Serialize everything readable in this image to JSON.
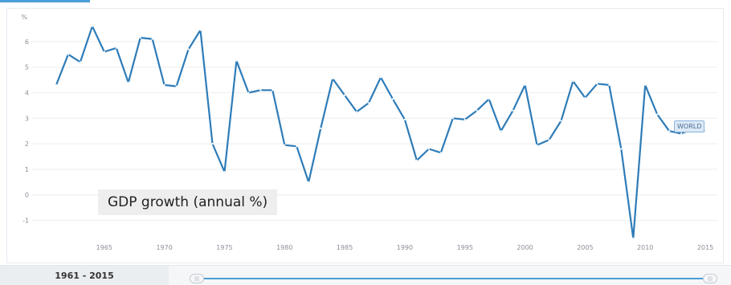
{
  "chart_data": {
    "type": "line",
    "title": "GDP growth (annual %)",
    "ylabel": "%",
    "xlabel": "",
    "ylim": [
      -1.8,
      7
    ],
    "xlim": [
      1960,
      2016
    ],
    "y_ticks": [
      -1,
      0,
      1,
      2,
      3,
      4,
      5,
      6
    ],
    "y_tick_labels": [
      "-1",
      "0",
      "1",
      "2",
      "3",
      "4",
      "5",
      "6"
    ],
    "x_ticks": [
      1965,
      1970,
      1975,
      1980,
      1985,
      1990,
      1995,
      2000,
      2005,
      2010,
      2015
    ],
    "x_tick_labels": [
      "1965",
      "1970",
      "1975",
      "1980",
      "1985",
      "1990",
      "1995",
      "2000",
      "2005",
      "2010",
      "2015"
    ],
    "grid": "horizontal",
    "series": [
      {
        "name": "WORLD",
        "color": "#2e7cb8",
        "x": [
          1961,
          1962,
          1963,
          1964,
          1965,
          1966,
          1967,
          1968,
          1969,
          1970,
          1971,
          1972,
          1973,
          1974,
          1975,
          1976,
          1977,
          1978,
          1979,
          1980,
          1981,
          1982,
          1983,
          1984,
          1985,
          1986,
          1987,
          1988,
          1989,
          1990,
          1991,
          1992,
          1993,
          1994,
          1995,
          1996,
          1997,
          1998,
          1999,
          2000,
          2001,
          2002,
          2003,
          2004,
          2005,
          2006,
          2007,
          2008,
          2009,
          2010,
          2011,
          2012,
          2013,
          2014,
          2015
        ],
        "y": [
          4.3,
          5.5,
          5.2,
          6.6,
          5.6,
          5.75,
          4.4,
          6.15,
          6.1,
          4.3,
          4.25,
          5.7,
          6.45,
          2.0,
          0.9,
          5.25,
          4.0,
          4.1,
          4.1,
          1.95,
          1.9,
          0.5,
          2.6,
          4.55,
          3.9,
          3.25,
          3.6,
          4.6,
          3.75,
          2.95,
          1.35,
          1.8,
          1.65,
          3.0,
          2.95,
          3.3,
          3.75,
          2.5,
          3.3,
          4.3,
          1.95,
          2.15,
          2.9,
          4.45,
          3.8,
          4.35,
          4.3,
          1.8,
          -1.7,
          4.3,
          3.15,
          2.5,
          2.4,
          2.6,
          2.5
        ]
      }
    ]
  },
  "footer": {
    "range_label": "1961 - 2015",
    "handle_glyph": "|||"
  },
  "colors": {
    "line": "#2e7cb8",
    "grid": "#eeeeee",
    "accent": "#4a9fd6"
  }
}
